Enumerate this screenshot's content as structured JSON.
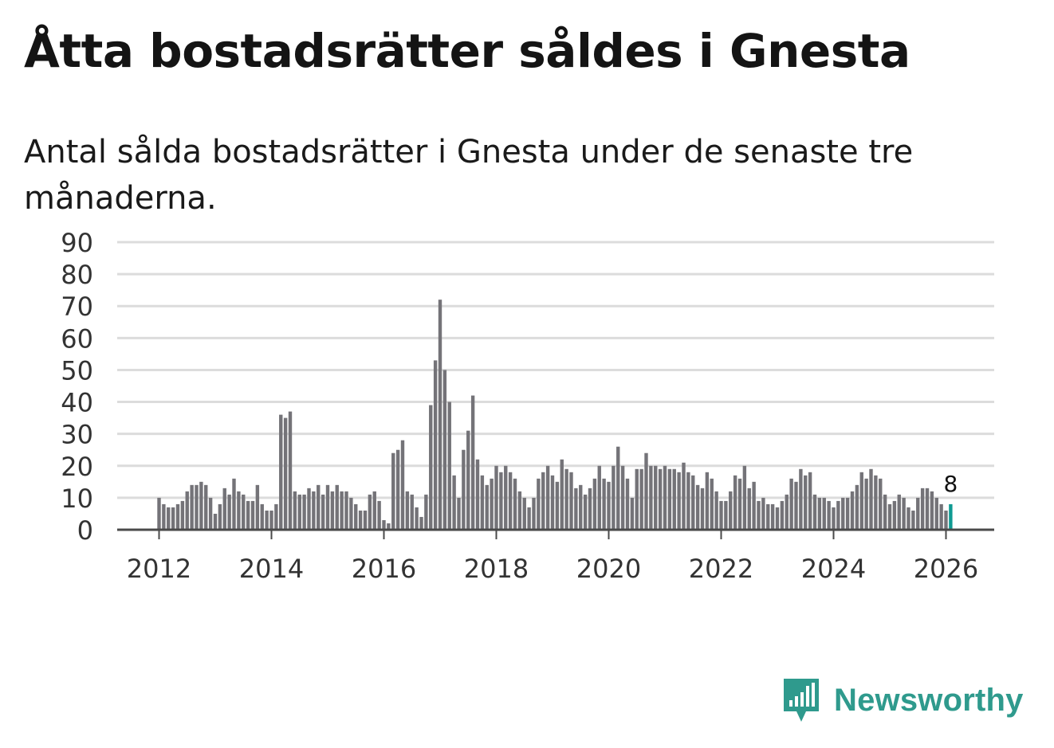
{
  "title": "Åtta bostadsrätter såldes i Gnesta",
  "subtitle": "Antal sålda bostadsrätter i Gnesta under de senaste tre månaderna.",
  "brand": {
    "name": "Newsworthy",
    "icon": "newsworthy-logo-icon"
  },
  "colors": {
    "bar": "#747378",
    "highlight": "#0f9a92",
    "grid": "#dcdcdc",
    "axis": "#4a4a4a",
    "brand": "#2f9a8d"
  },
  "chart_data": {
    "type": "bar",
    "title": "Åtta bostadsrätter såldes i Gnesta",
    "xlabel": "",
    "ylabel": "",
    "ylim": [
      0,
      90
    ],
    "yticks": [
      "0",
      "10",
      "20",
      "30",
      "40",
      "50",
      "60",
      "70",
      "80",
      "90"
    ],
    "xticks": [
      "2012",
      "2014",
      "2016",
      "2018",
      "2020",
      "2022",
      "2024",
      "2026"
    ],
    "grid": true,
    "start": "2012-01",
    "frequency": "monthly",
    "values": [
      10,
      8,
      7,
      7,
      8,
      9,
      12,
      14,
      14,
      15,
      14,
      10,
      5,
      8,
      13,
      11,
      16,
      12,
      11,
      9,
      9,
      14,
      8,
      6,
      6,
      8,
      36,
      35,
      37,
      12,
      11,
      11,
      13,
      12,
      14,
      11,
      14,
      12,
      14,
      12,
      12,
      10,
      8,
      6,
      6,
      11,
      12,
      9,
      3,
      2,
      24,
      25,
      28,
      12,
      11,
      7,
      4,
      11,
      39,
      53,
      72,
      50,
      40,
      17,
      10,
      25,
      31,
      42,
      22,
      17,
      14,
      16,
      20,
      18,
      20,
      18,
      16,
      12,
      10,
      7,
      10,
      16,
      18,
      20,
      17,
      15,
      22,
      19,
      18,
      13,
      14,
      11,
      13,
      16,
      20,
      16,
      15,
      20,
      26,
      20,
      16,
      10,
      19,
      19,
      24,
      20,
      20,
      19,
      20,
      19,
      19,
      18,
      21,
      18,
      17,
      14,
      13,
      18,
      16,
      12,
      9,
      9,
      12,
      17,
      16,
      20,
      13,
      15,
      9,
      10,
      8,
      8,
      7,
      9,
      11,
      16,
      15,
      19,
      17,
      18,
      11,
      10,
      10,
      9,
      7,
      9,
      10,
      10,
      12,
      14,
      18,
      16,
      19,
      17,
      16,
      11,
      8,
      9,
      11,
      10,
      7,
      6,
      10,
      13,
      13,
      12,
      10,
      8,
      6,
      8
    ],
    "highlight_last": true,
    "annotation": {
      "label": "8",
      "target": "last"
    }
  }
}
